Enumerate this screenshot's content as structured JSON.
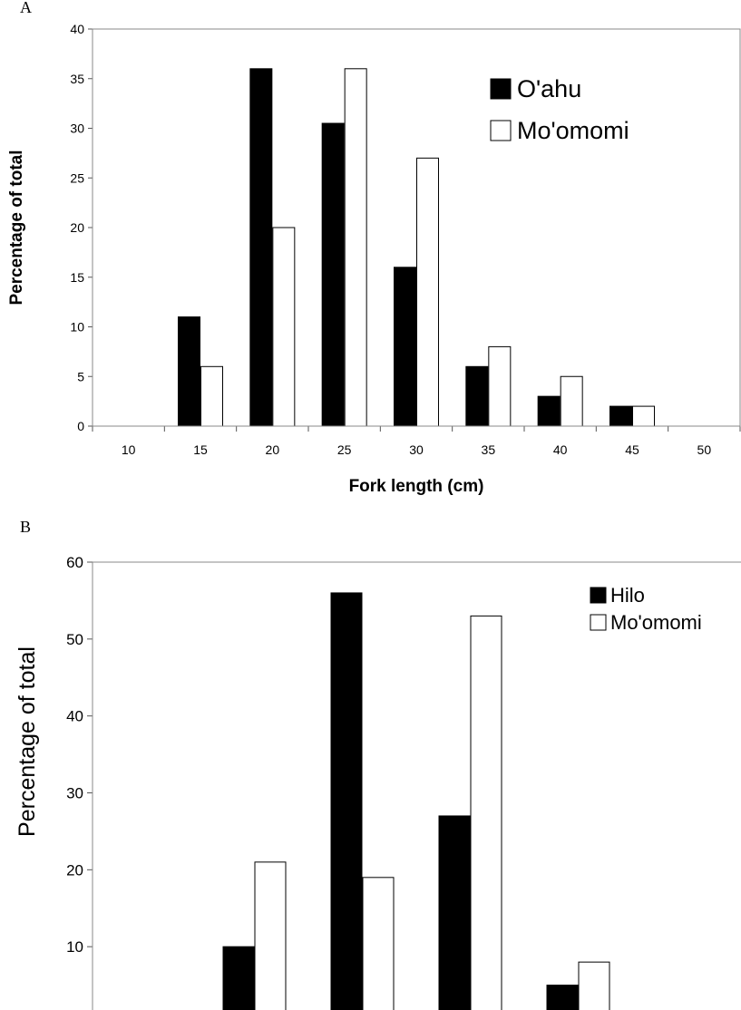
{
  "chart_data": [
    {
      "panel_label": "A",
      "type": "bar",
      "categories": [
        "10",
        "15",
        "20",
        "25",
        "30",
        "35",
        "40",
        "45",
        "50"
      ],
      "series": [
        {
          "name": "O'ahu",
          "color": "#000000",
          "values": [
            0,
            11,
            36,
            30.5,
            16,
            6,
            3,
            2,
            0
          ]
        },
        {
          "name": "Mo'omomi",
          "color": "#ffffff",
          "values": [
            0,
            6,
            20,
            36,
            27,
            8,
            5,
            2,
            0
          ]
        }
      ],
      "xlabel": "Fork length (cm)",
      "ylabel": "Percentage of total",
      "ylim": [
        0,
        40
      ],
      "yticks": [
        "0",
        "5",
        "10",
        "15",
        "20",
        "25",
        "30",
        "35",
        "40"
      ],
      "legend": "top-right",
      "grid": false
    },
    {
      "panel_label": "B",
      "type": "bar",
      "categories": [
        "",
        "",
        "",
        "",
        "",
        ""
      ],
      "series": [
        {
          "name": "Hilo",
          "color": "#000000",
          "values": [
            0,
            10,
            56,
            27,
            5,
            0
          ]
        },
        {
          "name": "Mo'omomi",
          "color": "#ffffff",
          "values": [
            0,
            21,
            19,
            53,
            8,
            0
          ]
        }
      ],
      "xlabel": "",
      "ylabel": "Percentage of total",
      "ylim": [
        0,
        60
      ],
      "yticks": [
        "10",
        "20",
        "30",
        "40",
        "50",
        "60"
      ],
      "legend": "top-right",
      "grid": false
    }
  ]
}
